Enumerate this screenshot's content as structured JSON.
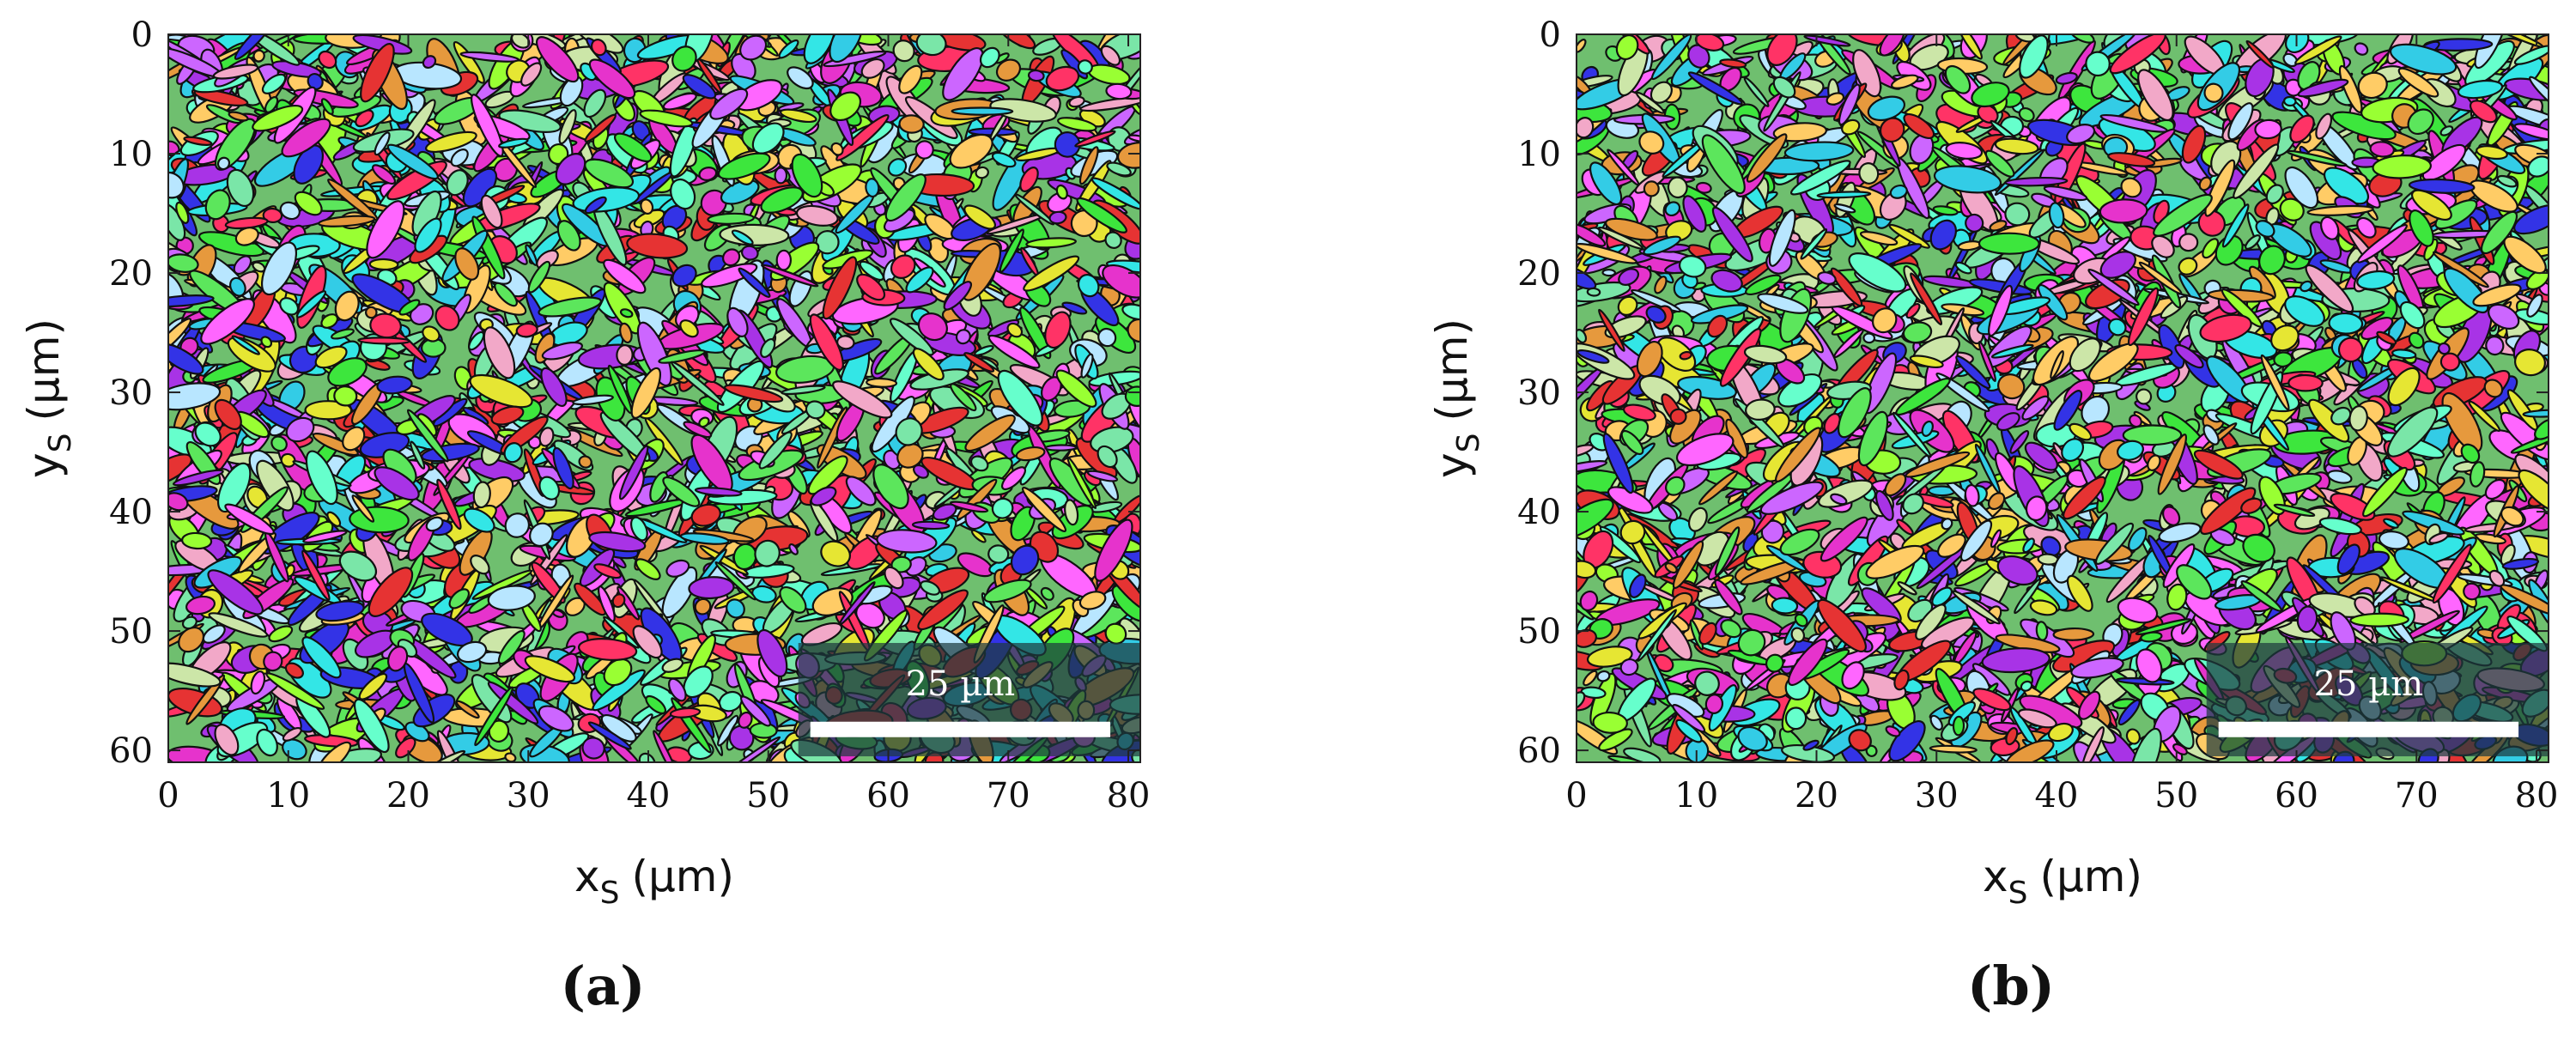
{
  "chart_data": [
    {
      "type": "heatmap",
      "panel_label": "(a)",
      "xlabel": "x",
      "xlabel_sub": "S",
      "xlabel_unit": "(µm)",
      "ylabel": "y",
      "ylabel_sub": "S",
      "ylabel_unit": "(µm)",
      "xlim": [
        0,
        81
      ],
      "ylim": [
        0,
        61
      ],
      "y_inverted": true,
      "x_ticks": [
        0,
        10,
        20,
        30,
        40,
        50,
        60,
        70,
        80
      ],
      "y_ticks": [
        0,
        10,
        20,
        30,
        40,
        50,
        60
      ],
      "scale_bar": {
        "label": "25 µm",
        "length": 25
      },
      "grid": false,
      "colors": [
        "#3de63d",
        "#e6e633",
        "#e633cc",
        "#33cce6",
        "#e63333",
        "#3333e6",
        "#7ae6a8",
        "#f2a8c8",
        "#cce6a8",
        "#a833e6",
        "#e6993d",
        "#5ce65c",
        "#ff66ff",
        "#33e6e6",
        "#b8e6ff",
        "#ffcc66",
        "#66ffcc",
        "#ff3366",
        "#99ff33",
        "#cc66ff"
      ],
      "seed": 17
    },
    {
      "type": "heatmap",
      "panel_label": "(b)",
      "xlabel": "x",
      "xlabel_sub": "S",
      "xlabel_unit": "(µm)",
      "ylabel": "y",
      "ylabel_sub": "S",
      "ylabel_unit": "(µm)",
      "xlim": [
        0,
        81
      ],
      "ylim": [
        0,
        61
      ],
      "y_inverted": true,
      "x_ticks": [
        0,
        10,
        20,
        30,
        40,
        50,
        60,
        70,
        80
      ],
      "y_ticks": [
        0,
        10,
        20,
        30,
        40,
        50,
        60
      ],
      "scale_bar": {
        "label": "25 µm",
        "length": 25
      },
      "grid": false,
      "colors": [
        "#3de63d",
        "#e6e633",
        "#e633cc",
        "#33cce6",
        "#e63333",
        "#3333e6",
        "#7ae6a8",
        "#f2a8c8",
        "#cce6a8",
        "#a833e6",
        "#e6993d",
        "#5ce65c",
        "#ff66ff",
        "#33e6e6",
        "#b8e6ff",
        "#ffcc66",
        "#66ffcc",
        "#ff3366",
        "#99ff33",
        "#cc66ff"
      ],
      "seed": 53
    }
  ]
}
